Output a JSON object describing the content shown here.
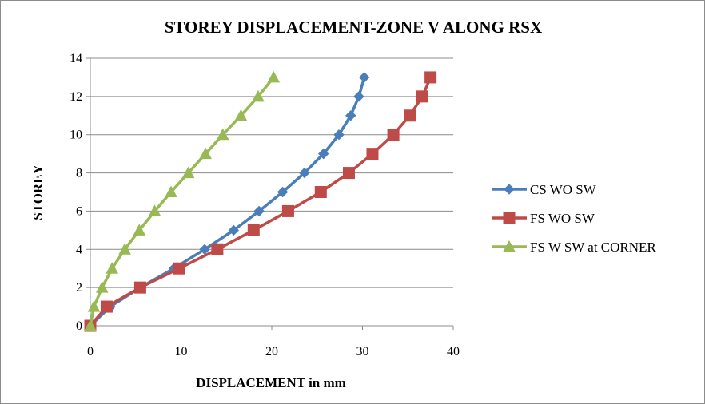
{
  "chart_data": {
    "type": "line",
    "title": "STOREY DISPLACEMENT-ZONE V ALONG RSX",
    "xlabel": "DISPLACEMENT in mm",
    "ylabel": "STOREY",
    "xlim": [
      0,
      40
    ],
    "ylim": [
      0,
      14
    ],
    "xticks": [
      0,
      10,
      20,
      30,
      40
    ],
    "yticks": [
      0,
      2,
      4,
      6,
      8,
      10,
      12,
      14
    ],
    "grid": "horizontal major gridlines",
    "legend_position": "right",
    "series": [
      {
        "name": "CS WO SW",
        "color": "#4a7ebb",
        "marker": "diamond",
        "points": [
          {
            "x": 0,
            "y": 0
          },
          {
            "x": 2.2,
            "y": 1
          },
          {
            "x": 5.5,
            "y": 2
          },
          {
            "x": 9.2,
            "y": 3
          },
          {
            "x": 12.6,
            "y": 4
          },
          {
            "x": 15.8,
            "y": 5
          },
          {
            "x": 18.6,
            "y": 6
          },
          {
            "x": 21.2,
            "y": 7
          },
          {
            "x": 23.6,
            "y": 8
          },
          {
            "x": 25.7,
            "y": 9
          },
          {
            "x": 27.4,
            "y": 10
          },
          {
            "x": 28.7,
            "y": 11
          },
          {
            "x": 29.6,
            "y": 12
          },
          {
            "x": 30.2,
            "y": 13
          }
        ]
      },
      {
        "name": "FS WO SW",
        "color": "#be4b48",
        "marker": "square",
        "points": [
          {
            "x": 0,
            "y": 0
          },
          {
            "x": 1.8,
            "y": 1
          },
          {
            "x": 5.5,
            "y": 2
          },
          {
            "x": 9.8,
            "y": 3
          },
          {
            "x": 14.0,
            "y": 4
          },
          {
            "x": 18.0,
            "y": 5
          },
          {
            "x": 21.8,
            "y": 6
          },
          {
            "x": 25.4,
            "y": 7
          },
          {
            "x": 28.5,
            "y": 8
          },
          {
            "x": 31.1,
            "y": 9
          },
          {
            "x": 33.4,
            "y": 10
          },
          {
            "x": 35.2,
            "y": 11
          },
          {
            "x": 36.6,
            "y": 12
          },
          {
            "x": 37.5,
            "y": 13
          }
        ]
      },
      {
        "name": "FS W SW at CORNER",
        "color": "#98b954",
        "marker": "triangle",
        "points": [
          {
            "x": 0,
            "y": 0
          },
          {
            "x": 0.4,
            "y": 1
          },
          {
            "x": 1.3,
            "y": 2
          },
          {
            "x": 2.4,
            "y": 3
          },
          {
            "x": 3.8,
            "y": 4
          },
          {
            "x": 5.4,
            "y": 5
          },
          {
            "x": 7.1,
            "y": 6
          },
          {
            "x": 8.9,
            "y": 7
          },
          {
            "x": 10.8,
            "y": 8
          },
          {
            "x": 12.7,
            "y": 9
          },
          {
            "x": 14.6,
            "y": 10
          },
          {
            "x": 16.6,
            "y": 11
          },
          {
            "x": 18.5,
            "y": 12
          },
          {
            "x": 20.2,
            "y": 13
          }
        ]
      }
    ]
  }
}
